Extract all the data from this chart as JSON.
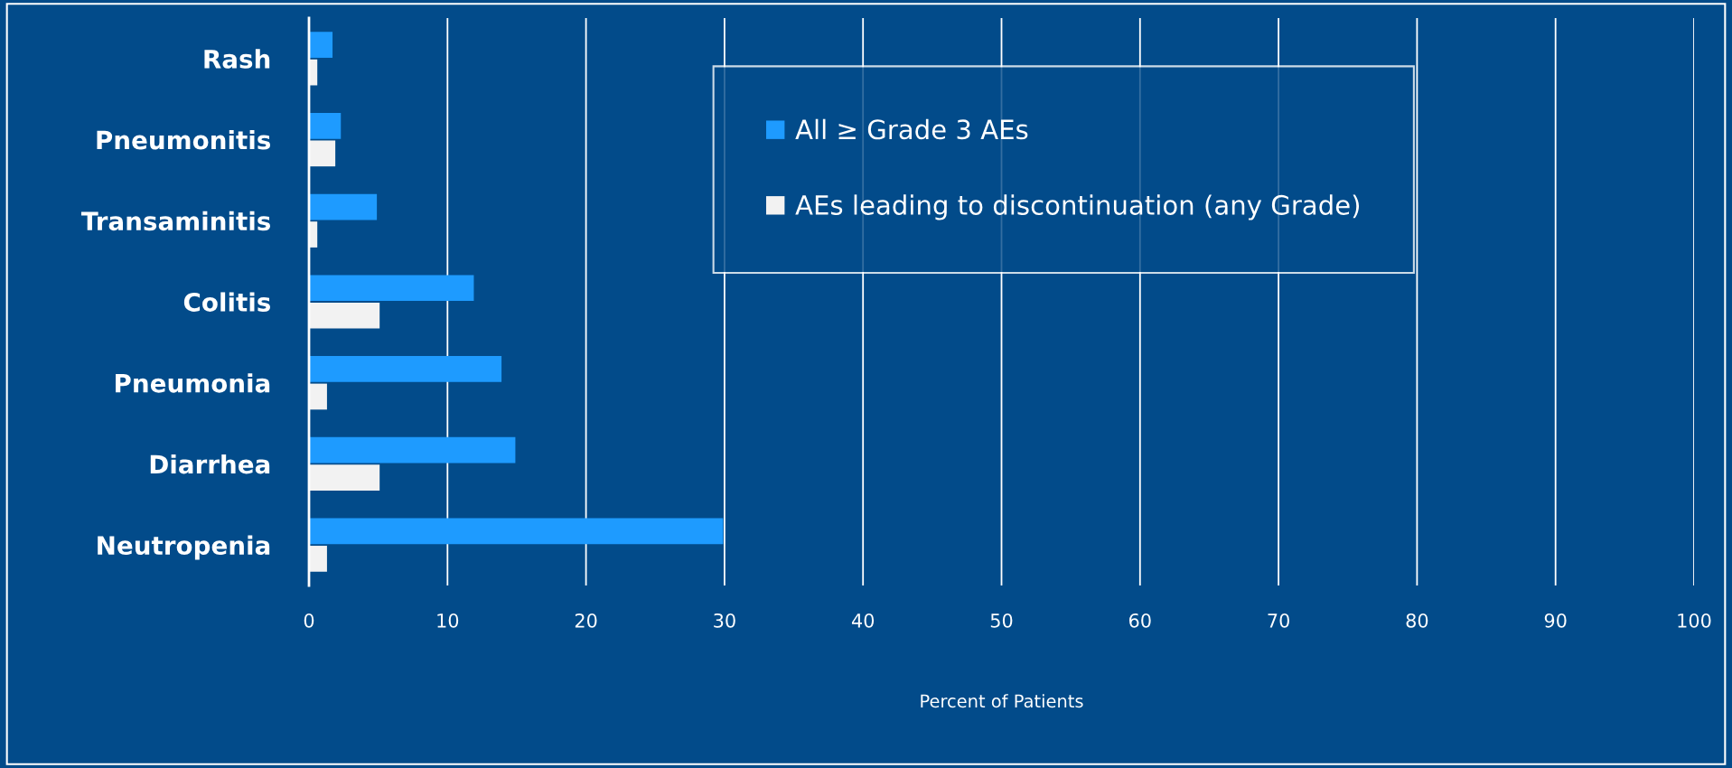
{
  "chart_data": {
    "type": "bar",
    "orientation": "horizontal",
    "xlabel": "Percent of Patients",
    "categories": [
      "Rash",
      "Pneumonitis",
      "Transaminitis",
      "Colitis",
      "Pneumonia",
      "Diarrhea",
      "Neutropenia"
    ],
    "series": [
      {
        "name": "All ≥ Grade 3 AEs",
        "color": "#1e9bff",
        "values": [
          1.7,
          2.3,
          4.9,
          11.9,
          13.9,
          14.9,
          29.9
        ]
      },
      {
        "name": "AEs leading to discontinuation (any Grade)",
        "color": "#f2f2f2",
        "values": [
          0.6,
          1.9,
          0.6,
          5.1,
          1.3,
          5.1,
          1.3
        ]
      }
    ],
    "xlim": [
      0,
      100
    ],
    "xticks": [
      0,
      10,
      20,
      30,
      40,
      50,
      60,
      70,
      80,
      90,
      100
    ],
    "grid": "x",
    "legend": "top right"
  }
}
